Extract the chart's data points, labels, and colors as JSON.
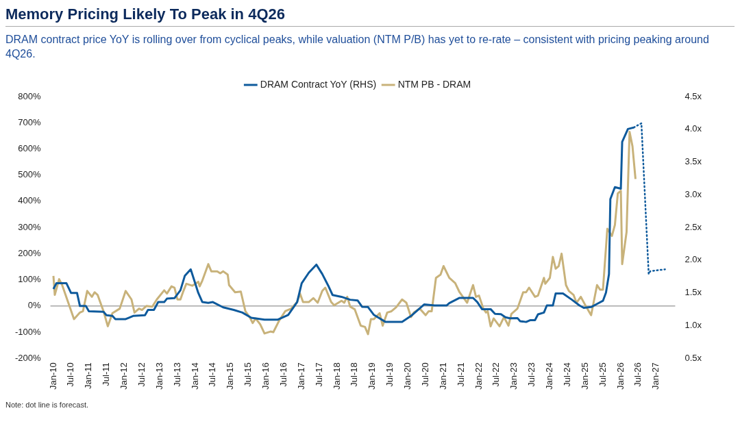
{
  "chart_data": {
    "type": "line",
    "title": "Memory Pricing Likely To Peak in 4Q26",
    "subtitle": "DRAM contract price YoY is rolling over from cyclical peaks, while valuation (NTM P/B) has yet to re-rate – consistent with pricing peaking around 4Q26.",
    "annotations": [
      "Note: dot line is forecast."
    ],
    "legend": "top",
    "grid": false,
    "marker": "none",
    "xlim": [
      "2009-12-01",
      "2027-07-15"
    ],
    "xticks": [
      {
        "value": "2010-01",
        "label": "Jan-10"
      },
      {
        "value": "2010-07",
        "label": "Jul-10"
      },
      {
        "value": "2011-01",
        "label": "Jan-11"
      },
      {
        "value": "2011-07",
        "label": "Jul-11"
      },
      {
        "value": "2012-01",
        "label": "Jan-12"
      },
      {
        "value": "2012-07",
        "label": "Jul-12"
      },
      {
        "value": "2013-01",
        "label": "Jan-13"
      },
      {
        "value": "2013-07",
        "label": "Jul-13"
      },
      {
        "value": "2014-01",
        "label": "Jan-14"
      },
      {
        "value": "2014-07",
        "label": "Jul-14"
      },
      {
        "value": "2015-01",
        "label": "Jan-15"
      },
      {
        "value": "2015-07",
        "label": "Jul-15"
      },
      {
        "value": "2016-01",
        "label": "Jan-16"
      },
      {
        "value": "2016-07",
        "label": "Jul-16"
      },
      {
        "value": "2017-01",
        "label": "Jan-17"
      },
      {
        "value": "2017-07",
        "label": "Jul-17"
      },
      {
        "value": "2018-01",
        "label": "Jan-18"
      },
      {
        "value": "2018-07",
        "label": "Jul-18"
      },
      {
        "value": "2019-01",
        "label": "Jan-19"
      },
      {
        "value": "2019-07",
        "label": "Jul-19"
      },
      {
        "value": "2020-01",
        "label": "Jan-20"
      },
      {
        "value": "2020-07",
        "label": "Jul-20"
      },
      {
        "value": "2021-01",
        "label": "Jan-21"
      },
      {
        "value": "2021-07",
        "label": "Jul-21"
      },
      {
        "value": "2022-01",
        "label": "Jan-22"
      },
      {
        "value": "2022-07",
        "label": "Jul-22"
      },
      {
        "value": "2023-01",
        "label": "Jan-23"
      },
      {
        "value": "2023-07",
        "label": "Jul-23"
      },
      {
        "value": "2024-01",
        "label": "Jan-24"
      },
      {
        "value": "2024-07",
        "label": "Jul-24"
      },
      {
        "value": "2025-01",
        "label": "Jan-25"
      },
      {
        "value": "2025-07",
        "label": "Jul-25"
      },
      {
        "value": "2026-01",
        "label": "Jan-26"
      },
      {
        "value": "2026-07",
        "label": "Jul-26"
      },
      {
        "value": "2027-01",
        "label": "Jan-27"
      }
    ],
    "ylim": [
      -200,
      800
    ],
    "yticks": [
      {
        "value": -200,
        "label": "-200%"
      },
      {
        "value": -100,
        "label": "-100%"
      },
      {
        "value": 0,
        "label": "0%"
      },
      {
        "value": 100,
        "label": "100%"
      },
      {
        "value": 200,
        "label": "200%"
      },
      {
        "value": 300,
        "label": "300%"
      },
      {
        "value": 400,
        "label": "400%"
      },
      {
        "value": 500,
        "label": "500%"
      },
      {
        "value": 600,
        "label": "600%"
      },
      {
        "value": 700,
        "label": "700%"
      },
      {
        "value": 800,
        "label": "800%"
      }
    ],
    "y2lim": [
      0.5,
      4.5
    ],
    "y2ticks": [
      {
        "value": 0.5,
        "label": "0.5x"
      },
      {
        "value": 1.0,
        "label": "1.0x"
      },
      {
        "value": 1.5,
        "label": "1.5x"
      },
      {
        "value": 2.0,
        "label": "2.0x"
      },
      {
        "value": 2.5,
        "label": "2.5x"
      },
      {
        "value": 3.0,
        "label": "3.0x"
      },
      {
        "value": 3.5,
        "label": "3.5x"
      },
      {
        "value": 4.0,
        "label": "4.0x"
      },
      {
        "value": 4.5,
        "label": "4.5x"
      }
    ],
    "ref_lines": [
      {
        "axis": "y",
        "value": 0,
        "color": "#a6a6a6"
      }
    ],
    "series": [
      {
        "name": "DRAM Contract YoY (RHS)",
        "color": "#0e5a9c",
        "line_style": "solid",
        "x": [
          "2010-01-01",
          "2010-02-01",
          "2010-05-15",
          "2010-07-01",
          "2010-09-01",
          "2010-10-01",
          "2010-12-01",
          "2011-01-01",
          "2011-06-01",
          "2011-07-01",
          "2011-09-01",
          "2011-10-01",
          "2012-01-15",
          "2012-02-15",
          "2012-04-01",
          "2012-08-01",
          "2012-09-01",
          "2012-11-01",
          "2012-12-15",
          "2013-02-15",
          "2013-03-15",
          "2013-06-01",
          "2013-08-01",
          "2013-09-15",
          "2013-11-15",
          "2014-02-01",
          "2014-03-15",
          "2014-05-15",
          "2014-07-01",
          "2014-10-15",
          "2015-02-01",
          "2015-05-01",
          "2015-08-01",
          "2015-12-15",
          "2016-05-01",
          "2016-08-15",
          "2016-11-15",
          "2017-01-01",
          "2017-03-15",
          "2017-06-01",
          "2017-08-01",
          "2017-10-01",
          "2017-11-15",
          "2018-02-15",
          "2018-05-15",
          "2018-08-01",
          "2018-09-15",
          "2018-11-15",
          "2019-01-15",
          "2019-05-15",
          "2019-11-01",
          "2020-02-01",
          "2020-06-15",
          "2020-10-01",
          "2021-02-01",
          "2021-03-01",
          "2021-06-15",
          "2021-11-01",
          "2021-12-15",
          "2022-02-01",
          "2022-05-01",
          "2022-06-15",
          "2022-08-15",
          "2022-10-01",
          "2022-11-15",
          "2023-02-01",
          "2023-03-01",
          "2023-05-01",
          "2023-06-15",
          "2023-08-01",
          "2023-09-01",
          "2023-11-01",
          "2023-12-01",
          "2024-02-01",
          "2024-03-01",
          "2024-05-15",
          "2024-08-15",
          "2024-11-01",
          "2024-12-15",
          "2025-03-01",
          "2025-05-01",
          "2025-07-01",
          "2025-08-01",
          "2025-09-01",
          "2025-09-15",
          "2025-11-01",
          "2026-01-01",
          "2026-01-15",
          "2026-03-15",
          "2026-05-15"
        ],
        "values": [
          65,
          87,
          87,
          50,
          50,
          0,
          0,
          -20,
          -22,
          -35,
          -38,
          -50,
          -50,
          -45,
          -38,
          -35,
          -15,
          -15,
          15,
          15,
          28,
          30,
          60,
          115,
          140,
          50,
          15,
          12,
          15,
          -5,
          -15,
          -25,
          -45,
          -52,
          -52,
          -34,
          15,
          87,
          127,
          158,
          122,
          78,
          42,
          35,
          24,
          21,
          -3,
          -4,
          -34,
          -61,
          -61,
          -38,
          6,
          2,
          2,
          11,
          31,
          31,
          15,
          -12,
          -12,
          -30,
          -31,
          -43,
          -47,
          -46,
          -58,
          -61,
          -54,
          -54,
          -32,
          -25,
          2,
          2,
          48,
          48,
          24,
          2,
          -7,
          -4,
          8,
          20,
          51,
          122,
          408,
          454,
          448,
          627,
          676,
          682
        ]
      },
      {
        "color": "#0e5a9c",
        "line_style": "dotted",
        "x": [
          "2026-05-15",
          "2026-08-01",
          "2026-10-15",
          "2026-11-01",
          "2027-04-01"
        ],
        "values": [
          682,
          698,
          122,
          133,
          140
        ]
      },
      {
        "name": "NTM PB - DRAM",
        "color": "#c8b27a",
        "axis": "y2",
        "line_style": "solid",
        "x": [
          "2010-01-01",
          "2010-01-15",
          "2010-03-01",
          "2010-04-01",
          "2010-08-01",
          "2010-10-01",
          "2010-11-01",
          "2010-12-15",
          "2011-02-01",
          "2011-03-01",
          "2011-04-01",
          "2011-06-01",
          "2011-07-15",
          "2011-09-01",
          "2011-11-15",
          "2012-01-15",
          "2012-03-15",
          "2012-04-15",
          "2012-06-01",
          "2012-07-01",
          "2012-08-15",
          "2012-10-15",
          "2012-12-01",
          "2013-02-15",
          "2013-03-15",
          "2013-05-01",
          "2013-06-01",
          "2013-07-01",
          "2013-08-01",
          "2013-09-01",
          "2013-10-01",
          "2013-12-01",
          "2014-02-01",
          "2014-02-15",
          "2014-03-15",
          "2014-05-15",
          "2014-06-15",
          "2014-08-15",
          "2014-09-15",
          "2014-10-15",
          "2014-12-01",
          "2014-12-15",
          "2015-02-15",
          "2015-04-15",
          "2015-06-01",
          "2015-07-15",
          "2015-08-15",
          "2015-09-15",
          "2015-11-01",
          "2015-12-15",
          "2016-02-15",
          "2016-03-15",
          "2016-05-15",
          "2016-07-15",
          "2016-09-15",
          "2016-11-15",
          "2016-12-15",
          "2017-01-15",
          "2017-03-15",
          "2017-05-01",
          "2017-06-15",
          "2017-08-01",
          "2017-09-01",
          "2017-11-01",
          "2017-12-01",
          "2018-02-15",
          "2018-03-15",
          "2018-04-15",
          "2018-05-15",
          "2018-07-01",
          "2018-09-01",
          "2018-10-15",
          "2018-11-15",
          "2018-12-15",
          "2019-01-15",
          "2019-03-15",
          "2019-04-15",
          "2019-06-01",
          "2019-07-15",
          "2019-09-01",
          "2019-11-01",
          "2019-12-15",
          "2020-02-01",
          "2020-03-01",
          "2020-05-01",
          "2020-07-01",
          "2020-08-01",
          "2020-09-01",
          "2020-10-15",
          "2020-12-01",
          "2021-01-01",
          "2021-03-01",
          "2021-05-01",
          "2021-06-15",
          "2021-09-01",
          "2021-11-01",
          "2021-12-01",
          "2022-01-01",
          "2022-02-15",
          "2022-03-15",
          "2022-04-01",
          "2022-05-01",
          "2022-06-01",
          "2022-08-01",
          "2022-09-15",
          "2022-11-01",
          "2022-12-01",
          "2023-02-01",
          "2023-04-01",
          "2023-05-01",
          "2023-06-01",
          "2023-08-01",
          "2023-09-01",
          "2023-11-01",
          "2023-11-15",
          "2024-01-01",
          "2024-02-01",
          "2024-03-01",
          "2024-04-01",
          "2024-05-01",
          "2024-06-15",
          "2024-07-15",
          "2024-09-01",
          "2024-10-01",
          "2024-11-15",
          "2025-01-01",
          "2025-03-01",
          "2025-05-01",
          "2025-06-01",
          "2025-07-01",
          "2025-08-15",
          "2025-10-01",
          "2025-11-01",
          "2025-12-01",
          "2026-01-01",
          "2026-01-15",
          "2026-03-01",
          "2026-04-01",
          "2026-05-01",
          "2026-06-01"
        ],
        "values": [
          1.76,
          1.47,
          1.71,
          1.62,
          1.1,
          1.2,
          1.22,
          1.53,
          1.44,
          1.51,
          1.47,
          1.22,
          0.99,
          1.19,
          1.26,
          1.53,
          1.4,
          1.2,
          1.26,
          1.24,
          1.3,
          1.29,
          1.4,
          1.54,
          1.49,
          1.6,
          1.58,
          1.4,
          1.4,
          1.53,
          1.64,
          1.61,
          1.67,
          1.6,
          1.69,
          1.94,
          1.83,
          1.83,
          1.8,
          1.83,
          1.78,
          1.62,
          1.51,
          1.52,
          1.22,
          1.13,
          1.04,
          1.11,
          1.02,
          0.88,
          0.91,
          0.9,
          1.08,
          1.22,
          1.26,
          1.36,
          1.49,
          1.36,
          1.36,
          1.42,
          1.35,
          1.53,
          1.58,
          1.36,
          1.31,
          1.38,
          1.35,
          1.44,
          1.29,
          1.25,
          1.0,
          0.98,
          0.87,
          1.1,
          1.1,
          1.19,
          1.0,
          1.2,
          1.22,
          1.28,
          1.4,
          1.35,
          1.13,
          1.2,
          1.26,
          1.16,
          1.22,
          1.22,
          1.73,
          1.78,
          1.91,
          1.73,
          1.65,
          1.51,
          1.35,
          1.62,
          1.44,
          1.46,
          1.26,
          1.2,
          1.22,
          0.99,
          1.11,
          0.99,
          1.13,
          1.0,
          1.18,
          1.26,
          1.51,
          1.51,
          1.58,
          1.44,
          1.46,
          1.73,
          1.64,
          1.73,
          2.05,
          1.87,
          1.91,
          2.1,
          1.62,
          1.53,
          1.47,
          1.35,
          1.44,
          1.31,
          1.16,
          1.62,
          1.55,
          1.55,
          2.48,
          2.37,
          2.54,
          3.02,
          3.06,
          1.94,
          2.43,
          3.96,
          3.74,
          3.24
        ]
      }
    ]
  }
}
